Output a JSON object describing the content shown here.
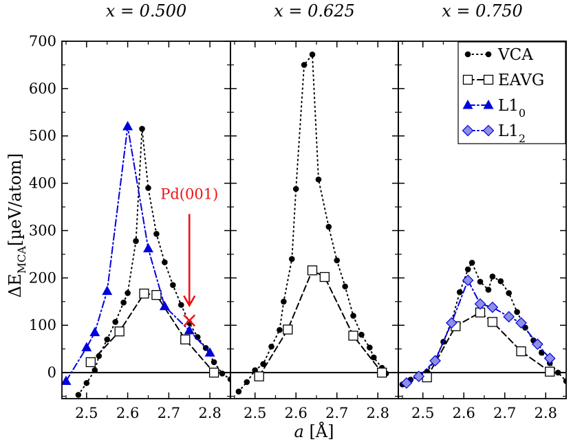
{
  "chart_data": {
    "type": "line",
    "ylabel": "ΔE_MCA [µeV/atom]",
    "ylabel_main": "ΔE",
    "ylabel_sub": "MCA",
    "ylabel_unit": "[µeV/atom]",
    "xlabel": "a [Å]",
    "xlabel_var": "a",
    "xlabel_unit": "[Å]",
    "ylim": [
      -55,
      700
    ],
    "xlim": [
      2.44,
      2.85
    ],
    "yticks": [
      0,
      100,
      200,
      300,
      400,
      500,
      600,
      700
    ],
    "xticks": [
      2.5,
      2.6,
      2.7,
      2.8
    ],
    "legend_position": "top-right",
    "panels": [
      {
        "title": "x = 0.500",
        "series": [
          {
            "name": "VCA",
            "points": [
              [
                2.48,
                -47
              ],
              [
                2.5,
                -22
              ],
              [
                2.52,
                5
              ],
              [
                2.53,
                35
              ],
              [
                2.55,
                70
              ],
              [
                2.57,
                107
              ],
              [
                2.59,
                148
              ],
              [
                2.6,
                168
              ],
              [
                2.62,
                278
              ],
              [
                2.635,
                515
              ],
              [
                2.65,
                390
              ],
              [
                2.67,
                293
              ],
              [
                2.69,
                233
              ],
              [
                2.71,
                185
              ],
              [
                2.73,
                143
              ],
              [
                2.75,
                105
              ],
              [
                2.77,
                75
              ],
              [
                2.79,
                52
              ],
              [
                2.81,
                22
              ],
              [
                2.83,
                -2
              ],
              [
                2.85,
                -14
              ]
            ]
          },
          {
            "name": "EAVG",
            "points": [
              [
                2.51,
                22
              ],
              [
                2.58,
                87
              ],
              [
                2.64,
                167
              ],
              [
                2.67,
                164
              ],
              [
                2.74,
                70
              ],
              [
                2.81,
                0
              ]
            ]
          },
          {
            "name": "L1_0",
            "points": [
              [
                2.45,
                -18
              ],
              [
                2.5,
                53
              ],
              [
                2.52,
                85
              ],
              [
                2.55,
                172
              ],
              [
                2.6,
                520
              ],
              [
                2.65,
                262
              ],
              [
                2.69,
                140
              ],
              [
                2.75,
                89
              ],
              [
                2.8,
                42
              ]
            ]
          }
        ],
        "annotation": {
          "text": "Pd(001)",
          "x": 2.75,
          "y": 110,
          "arrow_from_y": 335
        }
      },
      {
        "title": "x = 0.625",
        "series": [
          {
            "name": "VCA",
            "points": [
              [
                2.46,
                -40
              ],
              [
                2.48,
                -20
              ],
              [
                2.5,
                5
              ],
              [
                2.52,
                18
              ],
              [
                2.54,
                55
              ],
              [
                2.56,
                90
              ],
              [
                2.57,
                150
              ],
              [
                2.59,
                240
              ],
              [
                2.6,
                388
              ],
              [
                2.62,
                650
              ],
              [
                2.64,
                672
              ],
              [
                2.655,
                408
              ],
              [
                2.68,
                308
              ],
              [
                2.7,
                237
              ],
              [
                2.72,
                182
              ],
              [
                2.74,
                120
              ],
              [
                2.76,
                80
              ],
              [
                2.78,
                53
              ],
              [
                2.79,
                32
              ],
              [
                2.81,
                10
              ],
              [
                2.82,
                -2
              ]
            ]
          },
          {
            "name": "EAVG",
            "points": [
              [
                2.51,
                -8
              ],
              [
                2.58,
                91
              ],
              [
                2.64,
                216
              ],
              [
                2.67,
                202
              ],
              [
                2.74,
                78
              ],
              [
                2.81,
                0
              ]
            ]
          }
        ]
      },
      {
        "title": "x = 0.750",
        "series": [
          {
            "name": "VCA",
            "points": [
              [
                2.45,
                -25
              ],
              [
                2.47,
                -15
              ],
              [
                2.49,
                -5
              ],
              [
                2.51,
                2
              ],
              [
                2.53,
                27
              ],
              [
                2.55,
                65
              ],
              [
                2.57,
                108
              ],
              [
                2.59,
                170
              ],
              [
                2.61,
                218
              ],
              [
                2.62,
                232
              ],
              [
                2.64,
                192
              ],
              [
                2.66,
                175
              ],
              [
                2.67,
                203
              ],
              [
                2.69,
                193
              ],
              [
                2.71,
                168
              ],
              [
                2.73,
                128
              ],
              [
                2.75,
                95
              ],
              [
                2.77,
                68
              ],
              [
                2.79,
                42
              ],
              [
                2.81,
                20
              ],
              [
                2.83,
                0
              ],
              [
                2.85,
                -18
              ]
            ]
          },
          {
            "name": "EAVG",
            "points": [
              [
                2.51,
                -10
              ],
              [
                2.58,
                98
              ],
              [
                2.64,
                127
              ],
              [
                2.67,
                107
              ],
              [
                2.74,
                45
              ],
              [
                2.81,
                2
              ]
            ]
          },
          {
            "name": "L1_2",
            "points": [
              [
                2.46,
                -22
              ],
              [
                2.49,
                -8
              ],
              [
                2.53,
                25
              ],
              [
                2.57,
                105
              ],
              [
                2.61,
                195
              ],
              [
                2.64,
                145
              ],
              [
                2.67,
                138
              ],
              [
                2.71,
                118
              ],
              [
                2.74,
                105
              ],
              [
                2.78,
                60
              ],
              [
                2.81,
                30
              ]
            ]
          }
        ]
      }
    ],
    "legend": [
      {
        "label": "VCA",
        "main": "VCA",
        "sub": "",
        "marker": "circle",
        "dash": "dotted"
      },
      {
        "label": "EAVG",
        "main": "EAVG",
        "sub": "",
        "marker": "square",
        "dash": "dashed"
      },
      {
        "label": "L1_0",
        "main": "L1",
        "sub": "0",
        "marker": "triangle",
        "dash": "dashdot"
      },
      {
        "label": "L1_2",
        "main": "L1",
        "sub": "2",
        "marker": "diamond",
        "dash": "dashdot"
      }
    ],
    "colors": {
      "VCA": "#000000",
      "EAVG": "#000000",
      "L1_0": "#0000dd",
      "L1_2": "#0000dd",
      "annotation": "#ee1111",
      "axes": "#000000"
    }
  }
}
